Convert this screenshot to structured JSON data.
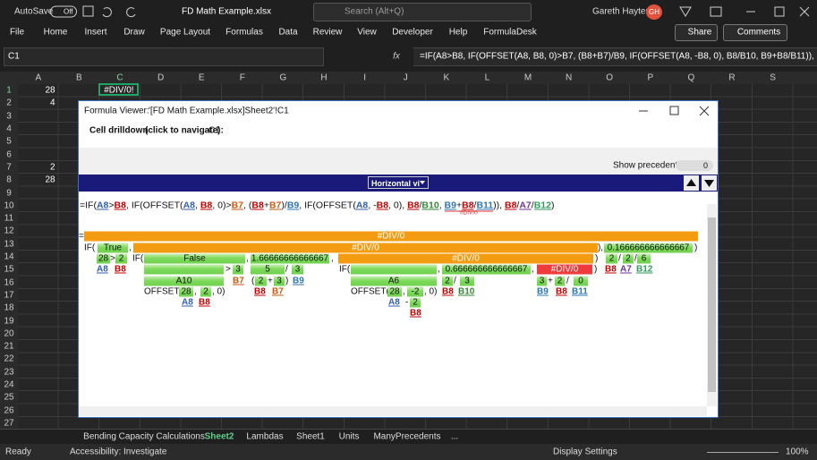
{
  "titlebar": {
    "autosave": "AutoSave",
    "autosave_state": "Off",
    "filename": "FD Math Example.xlsx",
    "search": "Search (Alt+Q)",
    "user": "Gareth Hayter",
    "initials": "GH"
  },
  "ribbon": {
    "tabs": [
      "File",
      "Home",
      "Insert",
      "Draw",
      "Page Layout",
      "Formulas",
      "Data",
      "Review",
      "View",
      "Developer",
      "Help",
      "FormulaDesk"
    ],
    "share": "Share",
    "comments": "Comments"
  },
  "formula_bar": {
    "name_box": "C1",
    "fx": "fx",
    "formula": "=IF(A8>B8, IF(OFFSET(A8, B8, 0)>B7, (B8+B7)/B9, IF(OFFSET(A8, -B8, 0), B8/B10, B9+B8/B11)), B8/"
  },
  "grid": {
    "columns": [
      "A",
      "B",
      "C",
      "D",
      "E",
      "F",
      "G",
      "H",
      "I",
      "J",
      "K",
      "L",
      "M",
      "N",
      "O",
      "P",
      "Q",
      "R",
      "S"
    ],
    "rows": [
      1,
      2,
      3,
      4,
      5,
      6,
      7,
      8,
      9,
      10,
      11,
      12,
      13,
      14,
      15,
      16,
      17,
      18,
      19,
      20,
      21,
      22,
      23,
      24,
      25,
      26,
      27
    ],
    "cells": {
      "A1": 28,
      "C1": "#DIV/0!",
      "A2": 4,
      "A7": 2,
      "A8": 28
    }
  },
  "formula_viewer": {
    "title": "Formula Viewer:",
    "path": "'[FD Math Example.xlsx]Sheet2'!C1",
    "drilldown_label": "Cell drilldown",
    "drilldown_hint": "(click to navigate):",
    "drilldown_cell": "C1",
    "show_precedents": "Show precedents:",
    "precedents_value": "0",
    "view_mode": "Horizontal vi",
    "ref_colors": {
      "A8": "#2f5fb3",
      "B8": "#c00000",
      "B7": "#c55a11",
      "B9": "#2e75b6",
      "B10": "#38863a",
      "B11": "#2f75b5",
      "A7": "#7030a0",
      "B12": "#2e9b58"
    },
    "formula_tokens": [
      "=IF(",
      "A8",
      ">",
      "B8",
      ", IF(OFFSET(",
      "A8",
      ", ",
      "B8",
      ", 0)>",
      "B7",
      ", (",
      "B8",
      "+",
      "B7",
      ")/",
      "B9",
      ", IF(OFFSET(",
      "A8",
      ", -",
      "B8",
      ", 0), ",
      "B8",
      "/",
      "B10",
      ", ",
      "B9",
      "+",
      "B8",
      "/",
      "B11",
      ")), ",
      "B8",
      "/",
      "A7",
      "/",
      "B12",
      ")"
    ],
    "formula_error": "#DIV/0",
    "tree": [
      "=",
      "#DIV/0",
      "IF(",
      "True",
      ",",
      "#DIV/0",
      ")",
      ",",
      "0.166666666666667",
      ")",
      "28",
      ">",
      "2",
      "IF(",
      "False",
      ",",
      "1.66666666666667",
      ",",
      "#DIV/0",
      ")",
      "2",
      "/",
      "2",
      "/",
      "6",
      "A8",
      "B8",
      ">",
      "3",
      "5",
      "/",
      "3",
      "IF(",
      ",",
      "0.666666666666667",
      ",",
      "#DIV/0",
      ")",
      "B8",
      "A7",
      "B12",
      "A10",
      "B7",
      "(",
      "2",
      "+",
      "3",
      ")",
      "B9",
      "A6",
      "2",
      "/",
      "3",
      "3",
      "+",
      "2",
      "/",
      "0",
      "OFFSET(",
      "28",
      ",",
      "2",
      ", 0)",
      "B8",
      "B7",
      "OFFSET(",
      "28",
      ",",
      "-2",
      ", 0)",
      "B8",
      "B10",
      "B9",
      "B8",
      "B11",
      "A8",
      "B8",
      "A8",
      "-",
      "2",
      "B8"
    ]
  },
  "sheet_tabs": {
    "tabs": [
      "Bending Capacity Calculations",
      "Sheet2",
      "Lambdas",
      "Sheet1",
      "Units",
      "ManyPrecedents",
      "..."
    ],
    "active": "Sheet2"
  },
  "status_bar": {
    "mode": "Ready",
    "accessibility": "Accessibility: Investigate",
    "display": "Display Settings",
    "zoom": "100%"
  }
}
